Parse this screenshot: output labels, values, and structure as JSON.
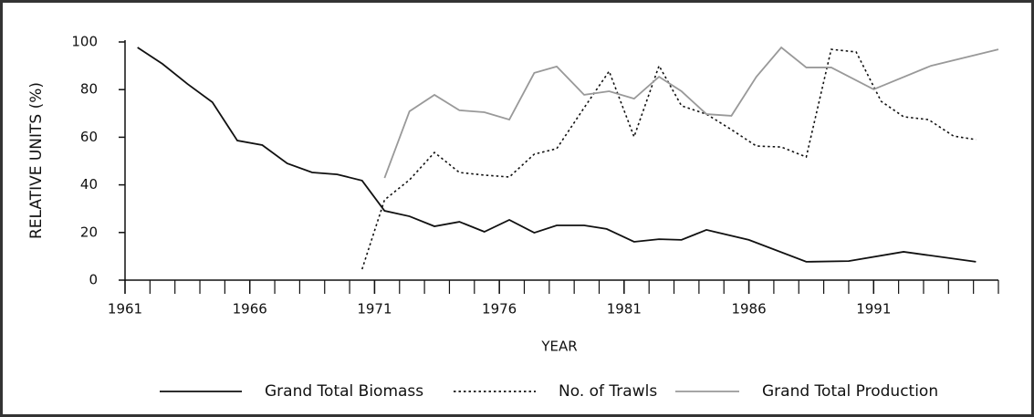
{
  "chart_data": {
    "type": "line",
    "x_label": "YEAR",
    "y_label": "RELATIVE UNITS (%)",
    "xlim": [
      1961,
      1996
    ],
    "xticks": [
      1961,
      1966,
      1971,
      1976,
      1981,
      1986,
      1991
    ],
    "xminorticks": [
      1961,
      1962,
      1963,
      1964,
      1965,
      1966,
      1967,
      1968,
      1969,
      1970,
      1971,
      1972,
      1973,
      1974,
      1975,
      1976,
      1977,
      1978,
      1979,
      1980,
      1981,
      1982,
      1983,
      1984,
      1985,
      1986,
      1987,
      1988,
      1989,
      1990,
      1991,
      1992,
      1993,
      1994,
      1995,
      1996
    ],
    "ylim": [
      0,
      100
    ],
    "yticks": [
      0,
      20,
      40,
      60,
      80,
      100
    ],
    "series": [
      {
        "name": "Grand Total Biomass",
        "color": "#111111",
        "style": "solid",
        "x": [
          1961.5,
          1962.5,
          1963.5,
          1964.5,
          1965.5,
          1966.5,
          1967.5,
          1968.5,
          1969.5,
          1970.5,
          1971.4,
          1972.4,
          1973.4,
          1974.4,
          1975.4,
          1976.4,
          1977.4,
          1978.3,
          1979.4,
          1980.3,
          1981.4,
          1982.4,
          1983.3,
          1984.3,
          1986,
          1988.3,
          1990,
          1992.2,
          1995.1
        ],
        "values": [
          97.7,
          90.8,
          82.4,
          74.7,
          58.6,
          56.7,
          49,
          45.2,
          44.4,
          41.8,
          29.1,
          26.8,
          22.6,
          24.5,
          20.3,
          25.3,
          19.9,
          23,
          23,
          21.5,
          16.1,
          17.2,
          16.9,
          21.1,
          16.9,
          7.7,
          8,
          11.9,
          7.7
        ]
      },
      {
        "name": "No. of Trawls",
        "color": "#111111",
        "style": "dotted",
        "x": [
          1970.5,
          1971.4,
          1972.4,
          1973.4,
          1974.4,
          1975.4,
          1976.4,
          1977.4,
          1978.3,
          1979.4,
          1980.4,
          1981.4,
          1982.4,
          1983.3,
          1984.3,
          1985.3,
          1986.3,
          1987.3,
          1988.3,
          1989.3,
          1990.3,
          1991.3,
          1992.2,
          1993.2,
          1994.2,
          1995.1
        ],
        "values": [
          4.6,
          33.7,
          42.1,
          53.6,
          45.2,
          44.1,
          43.3,
          52.9,
          55.2,
          72.4,
          87.7,
          60.2,
          90,
          73.2,
          69.7,
          63.2,
          56.3,
          55.9,
          51.7,
          96.9,
          95.8,
          75.1,
          68.6,
          67.4,
          60.5,
          59
        ]
      },
      {
        "name": "Grand Total Production",
        "color": "#999999",
        "style": "solid",
        "x": [
          1971.4,
          1972.4,
          1973.4,
          1974.4,
          1975.4,
          1976.4,
          1977.4,
          1978.3,
          1979.4,
          1980.4,
          1981.4,
          1982.4,
          1983.3,
          1984.3,
          1985.3,
          1986.3,
          1987.3,
          1988.3,
          1989.3,
          1991,
          1993.3,
          1996
        ],
        "values": [
          42.9,
          70.9,
          77.8,
          71.3,
          70.5,
          67.4,
          87,
          89.7,
          77.8,
          79.3,
          76.2,
          85.4,
          79.3,
          69.7,
          69,
          85.4,
          97.7,
          89.3,
          89.3,
          80.1,
          90,
          96.9
        ]
      }
    ]
  }
}
